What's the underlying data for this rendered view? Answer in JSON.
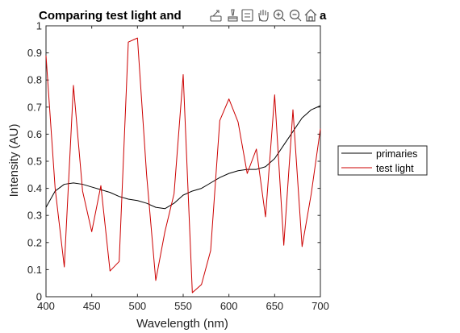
{
  "figure": {
    "title_visible": "Comparing test light and",
    "title_tail": "a"
  },
  "toolbar": {
    "icons": [
      "export-icon",
      "brush-icon",
      "datatips-icon",
      "pan-icon",
      "zoom-in-icon",
      "zoom-out-icon",
      "home-icon"
    ]
  },
  "chart_data": {
    "type": "line",
    "xlabel": "Wavelength (nm)",
    "ylabel": "Intensity (AU)",
    "xlim": [
      400,
      700
    ],
    "ylim": [
      0,
      1
    ],
    "xticks": [
      400,
      450,
      500,
      550,
      600,
      650,
      700
    ],
    "yticks": [
      0,
      0.1,
      0.2,
      0.3,
      0.4,
      0.5,
      0.6,
      0.7,
      0.8,
      0.9,
      1
    ],
    "xtick_labels": [
      "400",
      "450",
      "500",
      "550",
      "600",
      "650",
      "700"
    ],
    "ytick_labels": [
      "0",
      "0.1",
      "0.2",
      "0.3",
      "0.4",
      "0.5",
      "0.6",
      "0.7",
      "0.8",
      "0.9",
      "1"
    ],
    "box": true,
    "grid": false,
    "legend_position": "right-outside",
    "series": [
      {
        "name": "primaries",
        "color": "#000000",
        "x": [
          400,
          410,
          420,
          430,
          440,
          450,
          460,
          470,
          480,
          490,
          500,
          510,
          520,
          530,
          540,
          550,
          560,
          570,
          580,
          590,
          600,
          610,
          620,
          630,
          640,
          650,
          660,
          670,
          680,
          690,
          700
        ],
        "y": [
          0.33,
          0.39,
          0.415,
          0.42,
          0.415,
          0.405,
          0.395,
          0.385,
          0.37,
          0.36,
          0.355,
          0.345,
          0.33,
          0.325,
          0.345,
          0.375,
          0.39,
          0.4,
          0.42,
          0.44,
          0.455,
          0.465,
          0.47,
          0.47,
          0.48,
          0.51,
          0.56,
          0.61,
          0.66,
          0.69,
          0.705
        ]
      },
      {
        "name": "test light",
        "color": "#cc0000",
        "x": [
          400,
          410,
          420,
          430,
          440,
          450,
          460,
          470,
          480,
          490,
          500,
          510,
          520,
          530,
          540,
          550,
          560,
          570,
          580,
          590,
          600,
          610,
          620,
          630,
          640,
          650,
          660,
          670,
          680,
          690,
          700
        ],
        "y": [
          0.89,
          0.4,
          0.11,
          0.78,
          0.39,
          0.24,
          0.41,
          0.095,
          0.13,
          0.94,
          0.955,
          0.45,
          0.06,
          0.24,
          0.38,
          0.82,
          0.015,
          0.045,
          0.17,
          0.65,
          0.73,
          0.645,
          0.455,
          0.545,
          0.295,
          0.745,
          0.19,
          0.69,
          0.185,
          0.38,
          0.62
        ]
      }
    ]
  }
}
